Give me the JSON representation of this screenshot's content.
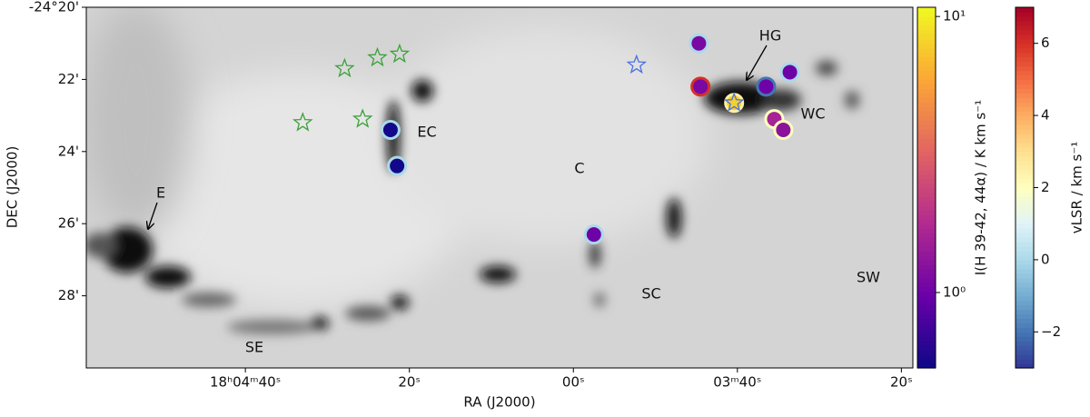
{
  "chart_data": {
    "type": "scatter",
    "xlabel": "RA (J2000)",
    "ylabel": "DEC (J2000)",
    "xlim": [
      119.4,
      18.6
    ],
    "ylim": [
      30,
      20
    ],
    "xticks": [
      {
        "value": 100,
        "label": "18ʰ04ᵐ40ˢ"
      },
      {
        "value": 80,
        "label": "20ˢ"
      },
      {
        "value": 60,
        "label": "00ˢ"
      },
      {
        "value": 40,
        "label": "03ᵐ40ˢ"
      },
      {
        "value": 20,
        "label": "20ˢ"
      }
    ],
    "yticks": [
      {
        "value": 20,
        "label": "-24°20'"
      },
      {
        "value": 22,
        "label": "22'"
      },
      {
        "value": 24,
        "label": "24'"
      },
      {
        "value": 26,
        "label": "26'"
      },
      {
        "value": 28,
        "label": "28'"
      }
    ],
    "points": {
      "x": [
        44.7,
        44.5,
        36.5,
        33.6,
        40.4,
        35.5,
        34.4,
        82.3,
        81.5,
        57.5
      ],
      "y": [
        21.0,
        22.2,
        22.2,
        21.8,
        22.65,
        23.1,
        23.4,
        23.4,
        24.4,
        26.3
      ],
      "intensity": [
        1.1,
        1.1,
        1.0,
        1.0,
        8.0,
        1.6,
        1.3,
        0.55,
        0.55,
        1.0
      ],
      "velocity": [
        0,
        6,
        -2,
        0,
        2.5,
        2,
        2,
        0,
        0,
        0
      ]
    },
    "stars": [
      {
        "color": "#3aa23a",
        "x": [
          87.9,
          83.9,
          81.2,
          93.0,
          85.7
        ],
        "y": [
          21.7,
          21.4,
          21.3,
          23.2,
          23.1
        ]
      },
      {
        "color": "#4a6fe3",
        "x": [
          52.3,
          40.4
        ],
        "y": [
          21.6,
          22.65
        ]
      }
    ],
    "annotations": [
      "HG",
      "EC",
      "WC",
      "C",
      "E",
      "SC",
      "SW",
      "SE"
    ],
    "colorbar_intensity": {
      "label": "I(H 39-42, 44α) / K km s⁻¹",
      "log": true,
      "colormap": "plasma",
      "lim": [
        0.533,
        10.8
      ],
      "ticks": [
        {
          "value": 1,
          "label": "10⁰"
        },
        {
          "value": 10,
          "label": "10¹"
        }
      ]
    },
    "colorbar_velocity": {
      "label": "vLSR / km s⁻¹",
      "log": false,
      "colormap": "RdYlBu_r",
      "lim": [
        -3,
        7
      ],
      "ticks": [
        {
          "value": -2,
          "label": "−2"
        },
        0,
        2,
        4,
        6
      ]
    }
  }
}
